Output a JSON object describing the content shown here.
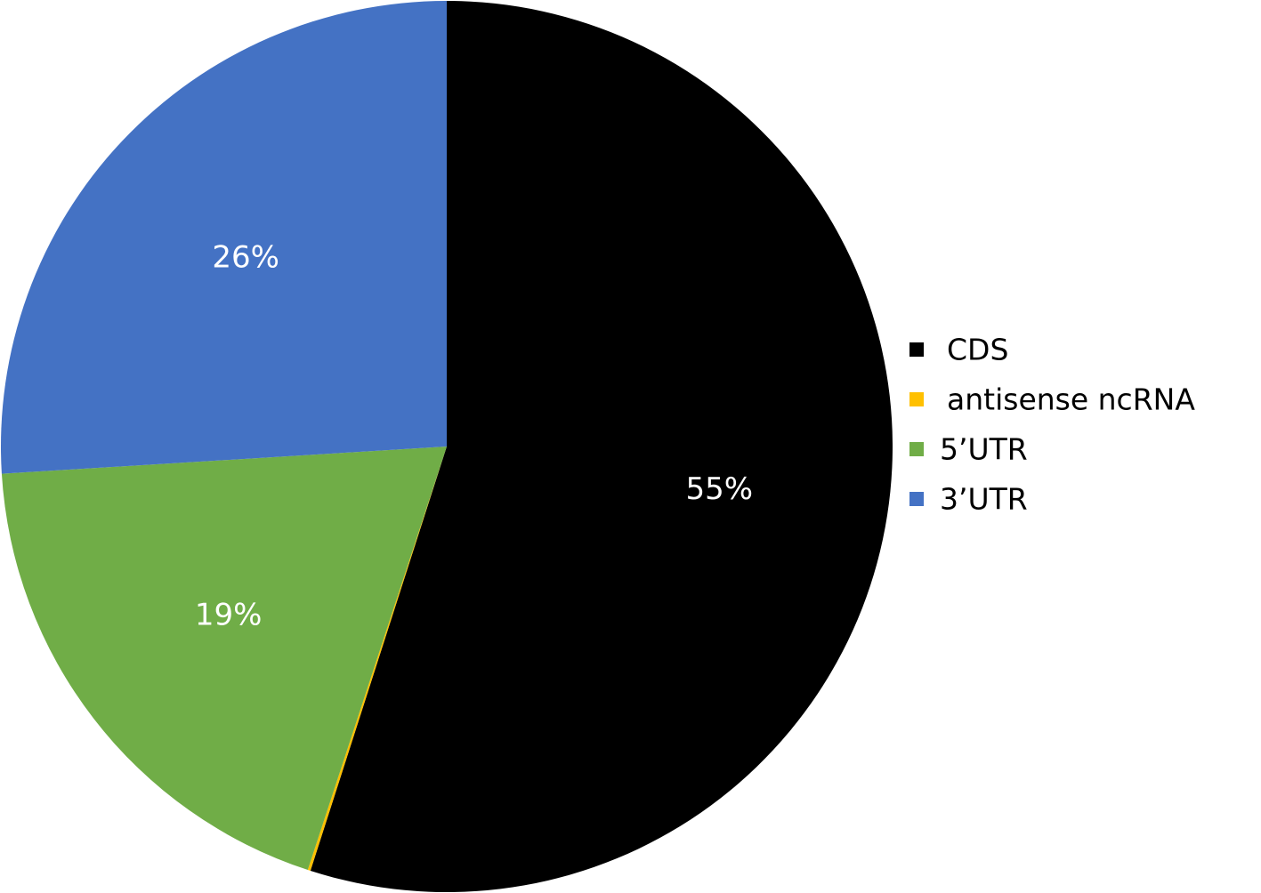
{
  "chart_data": {
    "type": "pie",
    "start_angle_deg": 0,
    "direction": "clockwise",
    "slices": [
      {
        "label": "CDS",
        "value": 55,
        "display": "55%",
        "color": "#000000"
      },
      {
        "label": "antisense ncRNA",
        "value": 0.1,
        "display": "",
        "color": "#FFC000"
      },
      {
        "label": "5’UTR",
        "value": 19,
        "display": "19%",
        "color": "#70AD47"
      },
      {
        "label": "3’UTR",
        "value": 26,
        "display": "26%",
        "color": "#4472C4"
      }
    ],
    "legend": {
      "placement": "right",
      "entries": [
        "CDS",
        "antisense ncRNA",
        "5’UTR",
        "3’UTR"
      ]
    }
  }
}
